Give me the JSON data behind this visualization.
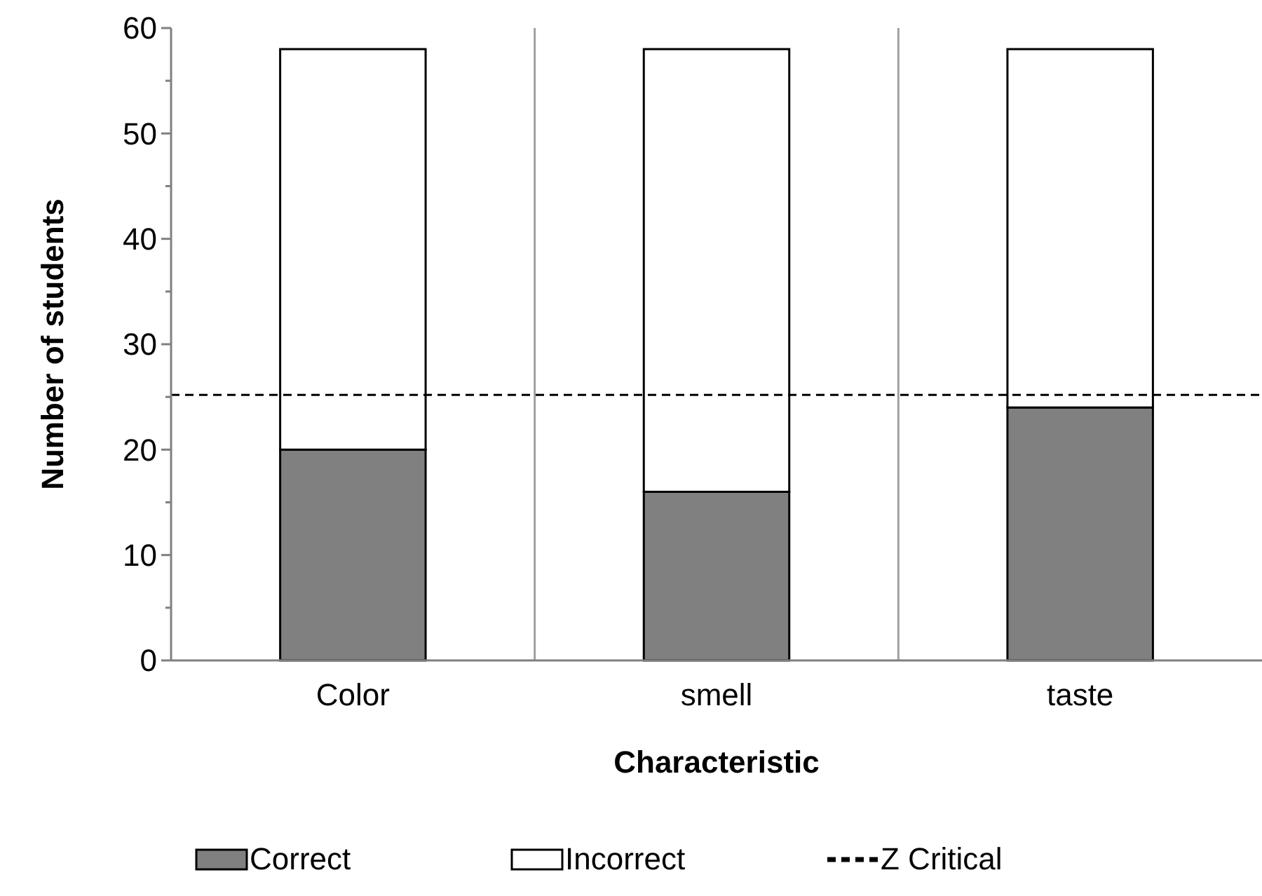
{
  "chart_data": {
    "type": "bar",
    "stacked": true,
    "xlabel": "Characteristic",
    "ylabel": "Number of students",
    "categories": [
      "Color",
      "smell",
      "taste"
    ],
    "series": [
      {
        "name": "Correct",
        "color": "#808080",
        "values": [
          20,
          16,
          24
        ]
      },
      {
        "name": "Incorrect",
        "color": "#ffffff",
        "values": [
          38,
          42,
          34
        ]
      }
    ],
    "ylim": [
      0,
      60
    ],
    "yticks": [
      0,
      {
        "value": 5,
        "label": null
      },
      10,
      {
        "value": 15,
        "label": null
      },
      20,
      {
        "value": 25,
        "label": null
      },
      30,
      {
        "value": 35,
        "label": null
      },
      40,
      {
        "value": 45,
        "label": null
      },
      50,
      {
        "value": 55,
        "label": null
      },
      60
    ],
    "ref_lines": [
      {
        "axis": "y",
        "value": 25.2,
        "label": "Z Critical",
        "color": "#000000",
        "line_style": "dashed"
      }
    ],
    "grid": "x",
    "legend": "bottom"
  }
}
